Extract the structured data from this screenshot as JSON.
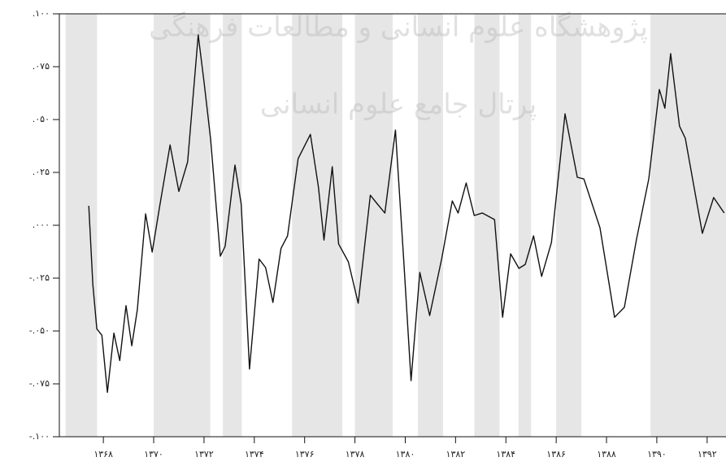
{
  "chart_data": {
    "type": "line",
    "watermark": [
      "پژوهشگاه علوم انسانی و مطالعات فرهنگی",
      "پرتال جامع علوم انسانی"
    ],
    "x": [
      1367.42,
      1367.58,
      1367.74,
      1367.94,
      1368.16,
      1368.42,
      1368.65,
      1368.9,
      1369.13,
      1369.35,
      1369.68,
      1369.94,
      1370.23,
      1370.65,
      1371.0,
      1371.35,
      1371.77,
      1372.0,
      1372.26,
      1372.65,
      1372.84,
      1373.23,
      1373.48,
      1373.81,
      1374.19,
      1374.45,
      1374.74,
      1375.06,
      1375.32,
      1375.74,
      1376.23,
      1376.55,
      1376.77,
      1377.1,
      1377.35,
      1377.74,
      1378.13,
      1378.61,
      1378.87,
      1379.19,
      1379.61,
      1379.94,
      1380.23,
      1380.58,
      1380.97,
      1381.45,
      1381.87,
      1382.1,
      1382.42,
      1382.74,
      1383.06,
      1383.55,
      1383.87,
      1384.19,
      1384.52,
      1384.77,
      1385.1,
      1385.42,
      1385.81,
      1386.35,
      1386.84,
      1387.1,
      1387.74,
      1388.32,
      1388.71,
      1389.19,
      1389.68,
      1390.1,
      1390.32,
      1390.55,
      1390.9,
      1391.13,
      1391.81,
      1392.26,
      1392.68
    ],
    "series": [
      {
        "color": "#111111",
        "values": [
          0.0092,
          -0.028,
          -0.049,
          -0.052,
          -0.079,
          -0.051,
          -0.064,
          -0.038,
          -0.057,
          -0.04,
          0.0054,
          -0.0127,
          0.0085,
          0.038,
          0.016,
          0.03,
          0.09,
          0.068,
          0.041,
          -0.0146,
          -0.01,
          0.0285,
          0.01,
          -0.068,
          -0.016,
          -0.02,
          -0.0365,
          -0.011,
          -0.005,
          0.0315,
          0.043,
          0.018,
          -0.007,
          0.0277,
          -0.0088,
          -0.0173,
          -0.0369,
          0.0142,
          0.0104,
          0.0058,
          0.045,
          -0.0165,
          -0.0735,
          -0.0223,
          -0.0427,
          -0.0158,
          0.0115,
          0.0058,
          0.02,
          0.0046,
          0.0058,
          0.0027,
          -0.0435,
          -0.0135,
          -0.0204,
          -0.0185,
          -0.005,
          -0.0242,
          -0.0081,
          0.0527,
          0.0227,
          0.0219,
          -0.0012,
          -0.0435,
          -0.0388,
          -0.0069,
          0.0219,
          0.0642,
          0.0554,
          0.0812,
          0.0469,
          0.0412,
          -0.0038,
          0.0131,
          0.0058
        ]
      }
    ],
    "shaded_regions": [
      [
        1366.5,
        1367.75
      ],
      [
        1370,
        1372.25
      ],
      [
        1372.75,
        1373.5
      ],
      [
        1375.5,
        1377.5
      ],
      [
        1378,
        1379.5
      ],
      [
        1380.5,
        1381.5
      ],
      [
        1382.75,
        1383.75
      ],
      [
        1384.5,
        1385
      ],
      [
        1386,
        1387
      ],
      [
        1389.75,
        1392.75
      ]
    ],
    "shade_color": "#e6e6e6",
    "xlim": [
      1366.25,
      1392.75
    ],
    "xticks": [
      {
        "value": 1368,
        "label": "۱۳۶۸"
      },
      {
        "value": 1370,
        "label": "۱۳۷۰"
      },
      {
        "value": 1372,
        "label": "۱۳۷۲"
      },
      {
        "value": 1374,
        "label": "۱۳۷۴"
      },
      {
        "value": 1376,
        "label": "۱۳۷۶"
      },
      {
        "value": 1378,
        "label": "۱۳۷۸"
      },
      {
        "value": 1380,
        "label": "۱۳۸۰"
      },
      {
        "value": 1382,
        "label": "۱۳۸۲"
      },
      {
        "value": 1384,
        "label": "۱۳۸۴"
      },
      {
        "value": 1386,
        "label": "۱۳۸۶"
      },
      {
        "value": 1388,
        "label": "۱۳۸۸"
      },
      {
        "value": 1390,
        "label": "۱۳۹۰"
      },
      {
        "value": 1392,
        "label": "۱۳۹۲"
      }
    ],
    "ylim": [
      -0.1,
      0.1
    ],
    "yticks": [
      {
        "value": 0.1,
        "label": ".۱۰۰"
      },
      {
        "value": 0.075,
        "label": ".۰۷۵"
      },
      {
        "value": 0.05,
        "label": ".۰۵۰"
      },
      {
        "value": 0.025,
        "label": ".۰۲۵"
      },
      {
        "value": 0,
        "label": ".۰۰۰"
      },
      {
        "value": -0.025,
        "label": "-.۰۲۵"
      },
      {
        "value": -0.05,
        "label": "-.۰۵۰"
      },
      {
        "value": -0.075,
        "label": "-.۰۷۵"
      },
      {
        "value": -0.1,
        "label": "-.۱۰۰"
      }
    ]
  }
}
